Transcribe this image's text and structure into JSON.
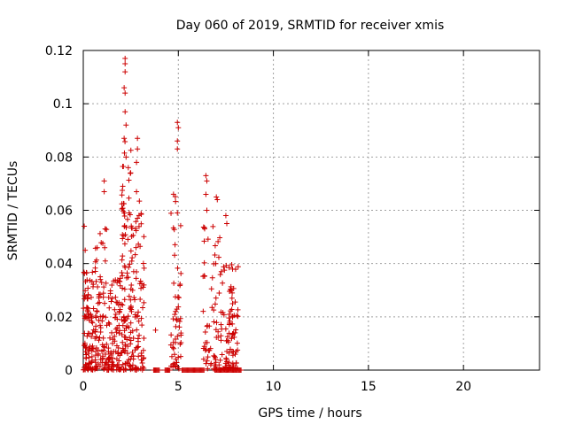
{
  "chart_data": {
    "type": "scatter",
    "title": "Day 060 of 2019, SRMTID for receiver xmis",
    "xlabel": "GPS time / hours",
    "ylabel": "SRMTID / TECUs",
    "xlim": [
      0,
      24
    ],
    "ylim": [
      0,
      0.12
    ],
    "x_ticks": [
      0,
      5,
      10,
      15,
      20
    ],
    "x_tick_labels": [
      "0",
      "5",
      "10",
      "15",
      "20"
    ],
    "y_ticks": [
      0,
      0.02,
      0.04,
      0.06,
      0.08,
      0.1,
      0.12
    ],
    "y_tick_labels": [
      "0",
      "0.02",
      "0.04",
      "0.06",
      "0.08",
      "0.1",
      "0.12"
    ],
    "grid": true,
    "marker": "+",
    "color": "#cc0000",
    "clusters": [
      {
        "x_range": [
          0.0,
          0.55
        ],
        "y_max": 0.054,
        "count": 95
      },
      {
        "x_range": [
          0.6,
          1.25
        ],
        "y_max": 0.071,
        "count": 90
      },
      {
        "x_range": [
          1.3,
          2.0
        ],
        "y_max": 0.046,
        "count": 90
      },
      {
        "x_range": [
          2.0,
          2.55
        ],
        "y_max": 0.118,
        "count": 110
      },
      {
        "x_range": [
          2.55,
          3.2
        ],
        "y_max": 0.087,
        "count": 80
      },
      {
        "x_range": [
          4.6,
          5.15
        ],
        "y_max": 0.093,
        "count": 55
      },
      {
        "x_range": [
          6.3,
          7.35
        ],
        "y_max": 0.073,
        "count": 75
      },
      {
        "x_range": [
          7.35,
          8.15
        ],
        "y_max": 0.058,
        "count": 85
      }
    ],
    "peaks": [
      {
        "x": 2.2,
        "y": 0.117
      },
      {
        "x": 2.2,
        "y": 0.115
      },
      {
        "x": 2.2,
        "y": 0.112
      },
      {
        "x": 2.15,
        "y": 0.106
      },
      {
        "x": 2.2,
        "y": 0.104
      },
      {
        "x": 2.2,
        "y": 0.097
      },
      {
        "x": 2.25,
        "y": 0.092
      },
      {
        "x": 2.15,
        "y": 0.087
      },
      {
        "x": 2.25,
        "y": 0.08
      },
      {
        "x": 2.85,
        "y": 0.087
      },
      {
        "x": 2.85,
        "y": 0.083
      },
      {
        "x": 2.8,
        "y": 0.078
      },
      {
        "x": 2.8,
        "y": 0.067
      },
      {
        "x": 2.85,
        "y": 0.057
      },
      {
        "x": 1.1,
        "y": 0.071
      },
      {
        "x": 1.1,
        "y": 0.067
      },
      {
        "x": 1.15,
        "y": 0.053
      },
      {
        "x": 0.05,
        "y": 0.054
      },
      {
        "x": 0.1,
        "y": 0.045
      },
      {
        "x": 4.95,
        "y": 0.093
      },
      {
        "x": 5.0,
        "y": 0.091
      },
      {
        "x": 4.95,
        "y": 0.086
      },
      {
        "x": 4.95,
        "y": 0.083
      },
      {
        "x": 4.95,
        "y": 0.059
      },
      {
        "x": 6.45,
        "y": 0.073
      },
      {
        "x": 6.5,
        "y": 0.071
      },
      {
        "x": 6.45,
        "y": 0.066
      },
      {
        "x": 6.5,
        "y": 0.06
      },
      {
        "x": 7.0,
        "y": 0.065
      },
      {
        "x": 7.05,
        "y": 0.064
      },
      {
        "x": 7.5,
        "y": 0.058
      },
      {
        "x": 7.55,
        "y": 0.055
      },
      {
        "x": 3.8,
        "y": 0.015
      },
      {
        "x": 2.15,
        "y": 0.059
      }
    ],
    "zero_segments": [
      [
        3.7,
        4.0
      ],
      [
        4.3,
        4.55
      ],
      [
        5.2,
        6.35
      ],
      [
        6.95,
        8.3
      ]
    ]
  }
}
